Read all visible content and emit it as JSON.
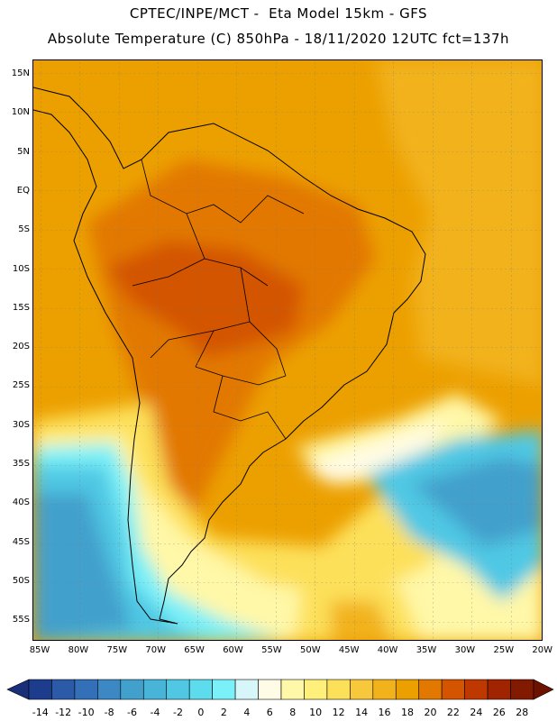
{
  "title_line1": "CPTEC/INPE/MCT -  Eta Model 15km - GFS",
  "title_line2": "Absolute Temperature (C) 850hPa - 18/11/2020 12UTC fct=137h",
  "lat_labels": [
    "15N",
    "10N",
    "5N",
    "EQ",
    "5S",
    "10S",
    "15S",
    "20S",
    "25S",
    "30S",
    "35S",
    "40S",
    "45S",
    "50S",
    "55S"
  ],
  "lon_labels": [
    "85W",
    "80W",
    "75W",
    "70W",
    "65W",
    "60W",
    "55W",
    "50W",
    "45W",
    "40W",
    "35W",
    "30W",
    "25W",
    "20W"
  ],
  "colorbar": {
    "labels": [
      "-14",
      "-12",
      "-10",
      "-8",
      "-6",
      "-4",
      "-2",
      "0",
      "2",
      "4",
      "6",
      "8",
      "10",
      "12",
      "14",
      "16",
      "18",
      "20",
      "22",
      "24",
      "26",
      "28"
    ],
    "colors": [
      "#1e3c8c",
      "#2a5aa8",
      "#3470b8",
      "#3c88c4",
      "#42a0cc",
      "#48b4d8",
      "#50c8e4",
      "#5cdcec",
      "#7af0f8",
      "#d6f6fa",
      "#fffbe4",
      "#fff8a8",
      "#fff07c",
      "#fde05a",
      "#f8c83c",
      "#f2b21c",
      "#eca000",
      "#e27800",
      "#d45400",
      "#be3800",
      "#a02400",
      "#821a00"
    ]
  }
}
